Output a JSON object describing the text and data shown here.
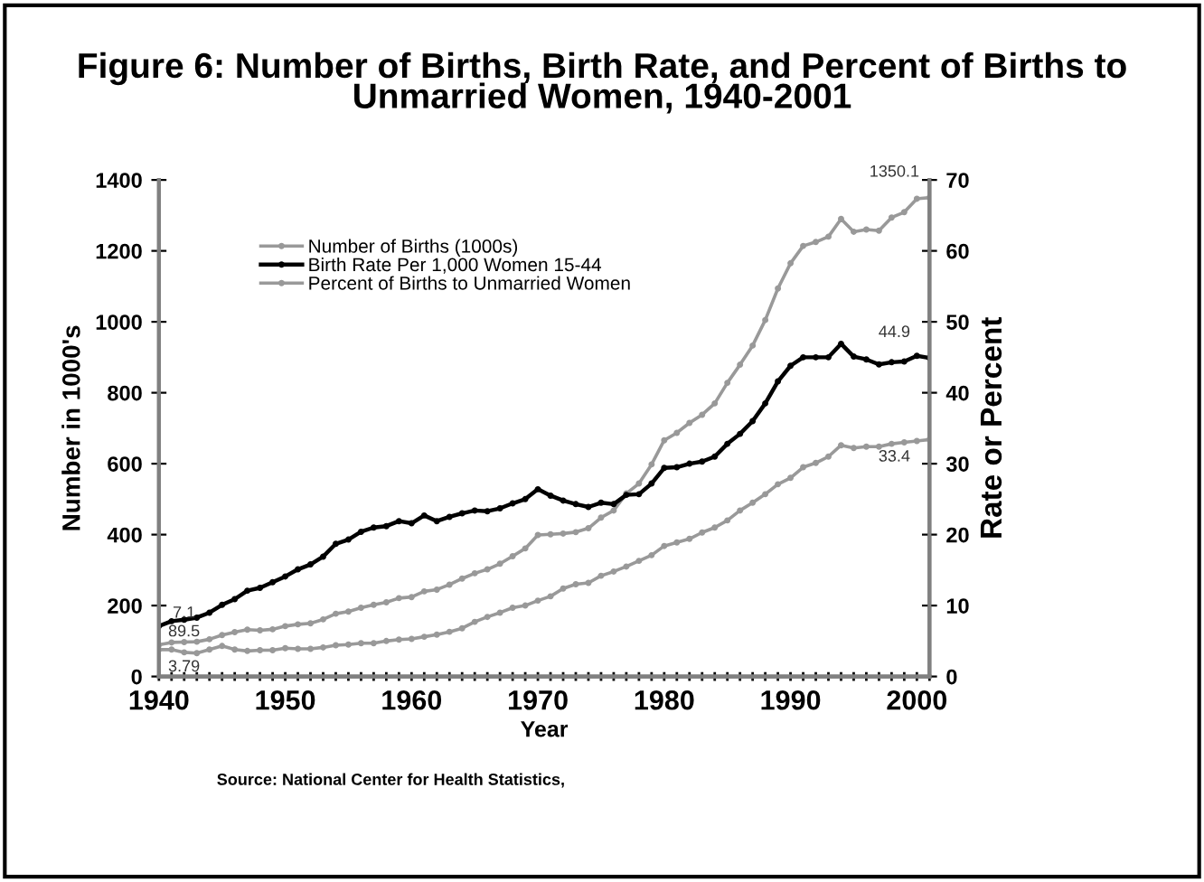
{
  "chart_data": {
    "type": "line",
    "title": "Figure 6: Number of Births, Birth Rate, and Percent of Births to Unmarried Women, 1940-2001",
    "xlabel": "Year",
    "ylabel": "Number in 1000's",
    "y2label": "Rate or Percent",
    "x": [
      1940,
      1941,
      1942,
      1943,
      1944,
      1945,
      1946,
      1947,
      1948,
      1949,
      1950,
      1951,
      1952,
      1953,
      1954,
      1955,
      1956,
      1957,
      1958,
      1959,
      1960,
      1961,
      1962,
      1963,
      1964,
      1965,
      1966,
      1967,
      1968,
      1969,
      1970,
      1971,
      1972,
      1973,
      1974,
      1975,
      1976,
      1977,
      1978,
      1979,
      1980,
      1981,
      1982,
      1983,
      1984,
      1985,
      1986,
      1987,
      1988,
      1989,
      1990,
      1991,
      1992,
      1993,
      1994,
      1995,
      1996,
      1997,
      1998,
      1999,
      2000,
      2001
    ],
    "series": [
      {
        "name": "Number of Births (1000s)",
        "color": "#999999",
        "values": [
          89.5,
          96,
          97,
          98,
          105,
          117,
          125,
          132,
          130,
          133,
          142,
          147,
          150,
          161,
          177,
          183,
          194,
          202,
          209,
          221,
          224,
          240,
          245,
          259,
          276,
          291,
          302,
          318,
          339,
          361,
          399,
          401,
          403,
          407,
          418,
          448,
          468,
          516,
          544,
          598,
          666,
          687,
          715,
          738,
          770,
          828,
          879,
          933,
          1005,
          1094,
          1165,
          1214,
          1225,
          1240,
          1290,
          1254,
          1260,
          1257,
          1294,
          1309,
          1347,
          1350.1
        ],
        "value_labels": [
          "89.5",
          null,
          null,
          null,
          null,
          null,
          null,
          null,
          null,
          null,
          null,
          null,
          null,
          null,
          null,
          null,
          null,
          null,
          null,
          null,
          null,
          null,
          null,
          null,
          null,
          null,
          null,
          null,
          null,
          null,
          null,
          null,
          null,
          null,
          null,
          null,
          null,
          null,
          null,
          null,
          null,
          null,
          null,
          null,
          null,
          null,
          null,
          null,
          null,
          null,
          null,
          null,
          null,
          null,
          null,
          null,
          null,
          null,
          null,
          null,
          null,
          "1350.1"
        ]
      },
      {
        "name": "Birth Rate Per 1,000 Women 15-44",
        "color": "#000000",
        "axis": "y2",
        "values": [
          7.1,
          7.8,
          8.0,
          8.3,
          9.0,
          10.1,
          10.9,
          12.1,
          12.5,
          13.3,
          14.1,
          15.1,
          15.8,
          16.9,
          18.7,
          19.3,
          20.4,
          21.0,
          21.2,
          21.9,
          21.6,
          22.7,
          21.9,
          22.5,
          23.0,
          23.4,
          23.3,
          23.7,
          24.4,
          25.0,
          26.4,
          25.5,
          24.8,
          24.3,
          23.9,
          24.5,
          24.3,
          25.6,
          25.7,
          27.2,
          29.4,
          29.5,
          30.0,
          30.3,
          31.0,
          32.8,
          34.2,
          36.0,
          38.5,
          41.6,
          43.8,
          45.0,
          45.0,
          45.0,
          46.9,
          45.1,
          44.7,
          44.0,
          44.3,
          44.4,
          45.2,
          44.9
        ],
        "value_labels": [
          "7.1",
          null,
          null,
          null,
          null,
          null,
          null,
          null,
          null,
          null,
          null,
          null,
          null,
          null,
          null,
          null,
          null,
          null,
          null,
          null,
          null,
          null,
          null,
          null,
          null,
          null,
          null,
          null,
          null,
          null,
          null,
          null,
          null,
          null,
          null,
          null,
          null,
          null,
          null,
          null,
          null,
          null,
          null,
          null,
          null,
          null,
          null,
          null,
          null,
          null,
          null,
          null,
          null,
          null,
          null,
          null,
          null,
          null,
          null,
          null,
          null,
          "44.9"
        ]
      },
      {
        "name": "Percent of Births to Unmarried Women",
        "color": "#999999",
        "axis": "y2",
        "values": [
          3.79,
          3.8,
          3.4,
          3.3,
          3.8,
          4.3,
          3.8,
          3.6,
          3.7,
          3.7,
          4.0,
          3.9,
          3.9,
          4.1,
          4.4,
          4.5,
          4.7,
          4.7,
          5.0,
          5.2,
          5.3,
          5.6,
          5.9,
          6.3,
          6.8,
          7.7,
          8.4,
          9.0,
          9.7,
          10.0,
          10.7,
          11.3,
          12.4,
          13.0,
          13.2,
          14.2,
          14.8,
          15.5,
          16.3,
          17.1,
          18.4,
          18.9,
          19.4,
          20.3,
          21.0,
          22.0,
          23.4,
          24.5,
          25.7,
          27.1,
          28.0,
          29.5,
          30.1,
          31.0,
          32.6,
          32.2,
          32.4,
          32.4,
          32.8,
          33.0,
          33.2,
          33.4
        ],
        "value_labels": [
          "3.79",
          null,
          null,
          null,
          null,
          null,
          null,
          null,
          null,
          null,
          null,
          null,
          null,
          null,
          null,
          null,
          null,
          null,
          null,
          null,
          null,
          null,
          null,
          null,
          null,
          null,
          null,
          null,
          null,
          null,
          null,
          null,
          null,
          null,
          null,
          null,
          null,
          null,
          null,
          null,
          null,
          null,
          null,
          null,
          null,
          null,
          null,
          null,
          null,
          null,
          null,
          null,
          null,
          null,
          null,
          null,
          null,
          null,
          null,
          null,
          null,
          "33.4"
        ]
      }
    ],
    "xlim": [
      1940,
      2001
    ],
    "xticks": [
      1940,
      {
        "value": 1941,
        "label": null
      },
      {
        "value": 1942,
        "label": null
      },
      {
        "value": 1943,
        "label": null
      },
      {
        "value": 1944,
        "label": null
      },
      {
        "value": 1945,
        "label": null
      },
      {
        "value": 1946,
        "label": null
      },
      {
        "value": 1947,
        "label": null
      },
      {
        "value": 1948,
        "label": null
      },
      {
        "value": 1949,
        "label": null
      },
      1950,
      {
        "value": 1951,
        "label": null
      },
      {
        "value": 1952,
        "label": null
      },
      {
        "value": 1953,
        "label": null
      },
      {
        "value": 1954,
        "label": null
      },
      {
        "value": 1955,
        "label": null
      },
      {
        "value": 1956,
        "label": null
      },
      {
        "value": 1957,
        "label": null
      },
      {
        "value": 1958,
        "label": null
      },
      {
        "value": 1959,
        "label": null
      },
      1960,
      {
        "value": 1961,
        "label": null
      },
      {
        "value": 1962,
        "label": null
      },
      {
        "value": 1963,
        "label": null
      },
      {
        "value": 1964,
        "label": null
      },
      {
        "value": 1965,
        "label": null
      },
      {
        "value": 1966,
        "label": null
      },
      {
        "value": 1967,
        "label": null
      },
      {
        "value": 1968,
        "label": null
      },
      {
        "value": 1969,
        "label": null
      },
      1970,
      {
        "value": 1971,
        "label": null
      },
      {
        "value": 1972,
        "label": null
      },
      {
        "value": 1973,
        "label": null
      },
      {
        "value": 1974,
        "label": null
      },
      {
        "value": 1975,
        "label": null
      },
      {
        "value": 1976,
        "label": null
      },
      {
        "value": 1977,
        "label": null
      },
      {
        "value": 1978,
        "label": null
      },
      {
        "value": 1979,
        "label": null
      },
      1980,
      {
        "value": 1981,
        "label": null
      },
      {
        "value": 1982,
        "label": null
      },
      {
        "value": 1983,
        "label": null
      },
      {
        "value": 1984,
        "label": null
      },
      {
        "value": 1985,
        "label": null
      },
      {
        "value": 1986,
        "label": null
      },
      {
        "value": 1987,
        "label": null
      },
      {
        "value": 1988,
        "label": null
      },
      {
        "value": 1989,
        "label": null
      },
      1990,
      {
        "value": 1991,
        "label": null
      },
      {
        "value": 1992,
        "label": null
      },
      {
        "value": 1993,
        "label": null
      },
      {
        "value": 1994,
        "label": null
      },
      {
        "value": 1995,
        "label": null
      },
      {
        "value": 1996,
        "label": null
      },
      {
        "value": 1997,
        "label": null
      },
      {
        "value": 1998,
        "label": null
      },
      {
        "value": 1999,
        "label": null
      },
      2000,
      {
        "value": 2001,
        "label": null
      }
    ],
    "ylim": [
      0,
      1400
    ],
    "yticks": [
      0,
      200,
      400,
      600,
      800,
      1000,
      1200,
      1400
    ],
    "y2lim": [
      0,
      70
    ],
    "y2ticks": [
      0,
      10,
      20,
      30,
      40,
      50,
      60,
      70
    ],
    "marker": "circle",
    "line_style": "solid",
    "grid": false,
    "legend": "top left",
    "annotations": [
      "Source: National Center for Health Statistics,"
    ]
  }
}
